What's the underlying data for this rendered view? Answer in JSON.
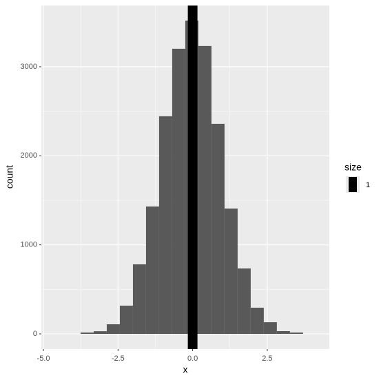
{
  "chart_data": {
    "type": "histogram",
    "x_label": "x",
    "y_label": "count",
    "bins": [
      -3.755,
      -3.3165,
      -2.878,
      -2.4395,
      -2.001,
      -1.5625,
      -1.124,
      -0.6855,
      -0.247,
      0.1915,
      0.63,
      1.0685,
      1.507,
      1.9455,
      2.384,
      2.8225,
      3.261,
      3.6995
    ],
    "values": [
      15,
      30,
      108,
      317,
      781,
      1431,
      2444,
      3202,
      3519,
      3233,
      2359,
      1408,
      735,
      294,
      131,
      31,
      15
    ],
    "color": "#595959",
    "xlim": [
      -5.07,
      4.58
    ],
    "xticks": [
      {
        "value": -5,
        "label": "-5.0"
      },
      -2.5,
      {
        "value": 0,
        "label": "0.0"
      },
      2.5
    ],
    "ylim": [
      -170,
      3688
    ],
    "yticks": [
      0,
      1000,
      2000,
      3000
    ],
    "grid": true,
    "vline": {
      "x": 0,
      "color": "#000000",
      "size": 1
    },
    "legend": {
      "title": "size",
      "position": "right"
    }
  }
}
